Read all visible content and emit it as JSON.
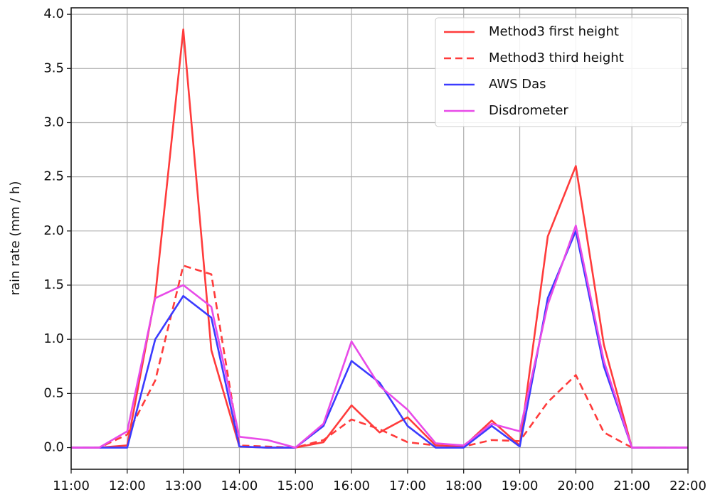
{
  "chart_data": {
    "type": "line",
    "ylabel": "rain rate (mm / h)",
    "x": [
      11,
      11.5,
      12,
      12.5,
      13,
      13.5,
      14,
      14.5,
      15,
      15.5,
      16,
      16.5,
      17,
      17.5,
      18,
      18.5,
      19,
      19.5,
      20,
      20.5,
      21,
      21.5,
      22
    ],
    "series": [
      {
        "name": "Method3 first height",
        "color": "#ff3b3b",
        "linestyle": "solid",
        "values": [
          0,
          0,
          0.02,
          1.4,
          3.86,
          0.9,
          0.01,
          0,
          0,
          0.05,
          0.39,
          0.14,
          0.28,
          0.02,
          0.01,
          0.25,
          0.02,
          1.95,
          2.6,
          0.95,
          0,
          0,
          0
        ]
      },
      {
        "name": "Method3 third height",
        "color": "#ff3b3b",
        "linestyle": "dashed",
        "values": [
          0,
          0,
          0.12,
          0.62,
          1.68,
          1.6,
          0.02,
          0.01,
          0,
          0.07,
          0.26,
          0.17,
          0.05,
          0.02,
          0.01,
          0.07,
          0.06,
          0.42,
          0.67,
          0.14,
          0,
          0,
          0
        ]
      },
      {
        "name": "AWS Das",
        "color": "#3b3bff",
        "linestyle": "solid",
        "values": [
          0,
          0,
          0,
          1.0,
          1.4,
          1.2,
          0.01,
          0,
          0,
          0.2,
          0.8,
          0.6,
          0.2,
          0,
          0,
          0.2,
          0.01,
          1.38,
          2.0,
          0.75,
          0,
          0,
          0
        ]
      },
      {
        "name": "Disdrometer",
        "color": "#e84ae8",
        "linestyle": "solid",
        "values": [
          0,
          0,
          0.15,
          1.38,
          1.5,
          1.3,
          0.1,
          0.07,
          0,
          0.22,
          0.98,
          0.57,
          0.35,
          0.04,
          0.02,
          0.22,
          0.15,
          1.32,
          2.05,
          0.8,
          0,
          0,
          0
        ]
      }
    ],
    "xlim": [
      11,
      22
    ],
    "xticks": [
      {
        "value": 11,
        "label": "11:00"
      },
      {
        "value": 12,
        "label": "12:00"
      },
      {
        "value": 13,
        "label": "13:00"
      },
      {
        "value": 14,
        "label": "14:00"
      },
      {
        "value": 15,
        "label": "15:00"
      },
      {
        "value": 16,
        "label": "16:00"
      },
      {
        "value": 17,
        "label": "17:00"
      },
      {
        "value": 18,
        "label": "18:00"
      },
      {
        "value": 19,
        "label": "19:00"
      },
      {
        "value": 20,
        "label": "20:00"
      },
      {
        "value": 21,
        "label": "21:00"
      },
      {
        "value": 22,
        "label": "22:00"
      }
    ],
    "ylim": [
      -0.2,
      4.06
    ],
    "yticks": [
      {
        "value": 0,
        "label": "0.0"
      },
      0.5,
      {
        "value": 1,
        "label": "1.0"
      },
      1.5,
      {
        "value": 2,
        "label": "2.0"
      },
      2.5,
      {
        "value": 3,
        "label": "3.0"
      },
      3.5,
      {
        "value": 4,
        "label": "4.0"
      }
    ],
    "grid": true,
    "legend": "upper right"
  }
}
